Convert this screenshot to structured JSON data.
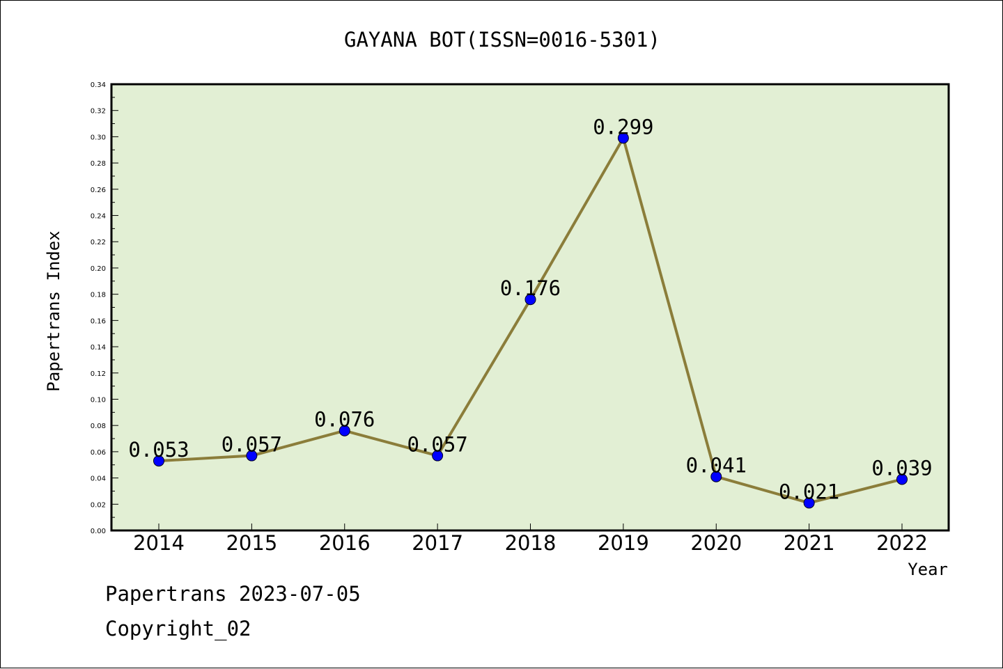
{
  "chart_data": {
    "type": "line",
    "title": "GAYANA BOT(ISSN=0016-5301)",
    "xlabel": "Year",
    "ylabel": "Papertrans Index",
    "categories": [
      "2014",
      "2015",
      "2016",
      "2017",
      "2018",
      "2019",
      "2020",
      "2021",
      "2022"
    ],
    "values": [
      0.053,
      0.057,
      0.076,
      0.057,
      0.176,
      0.299,
      0.041,
      0.021,
      0.039
    ],
    "data_labels": [
      "0.053",
      "0.057",
      "0.076",
      "0.057",
      "0.176",
      "0.299",
      "0.041",
      "0.021",
      "0.039"
    ],
    "ylim": [
      0,
      0.34
    ],
    "y_ticks": [
      "0.00",
      "0.02",
      "0.04",
      "0.06",
      "0.08",
      "0.10",
      "0.12",
      "0.14",
      "0.16",
      "0.18",
      "0.20",
      "0.22",
      "0.24",
      "0.26",
      "0.28",
      "0.30",
      "0.32",
      "0.34"
    ],
    "grid": false,
    "colors": {
      "plot_background": "#e2efd4",
      "line": "#8b7d3a",
      "marker": "#0000ff"
    }
  },
  "footer": {
    "line1": "Papertrans 2023-07-05",
    "line2": "Copyright_02"
  }
}
